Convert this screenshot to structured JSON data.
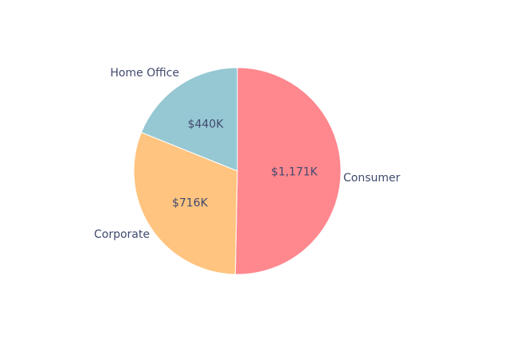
{
  "chart_data": {
    "type": "pie",
    "title": "",
    "slices": [
      {
        "name": "Consumer",
        "value": 1171,
        "value_label": "$1,171K",
        "color": "#ff878e"
      },
      {
        "name": "Corporate",
        "value": 716,
        "value_label": "$716K",
        "color": "#ffc47f"
      },
      {
        "name": "Home Office",
        "value": 440,
        "value_label": "$440K",
        "color": "#96c8d3"
      }
    ],
    "start": "12 o'clock",
    "direction": "clockwise",
    "legend": "none",
    "category_labels": "outside",
    "value_labels": "inside"
  }
}
